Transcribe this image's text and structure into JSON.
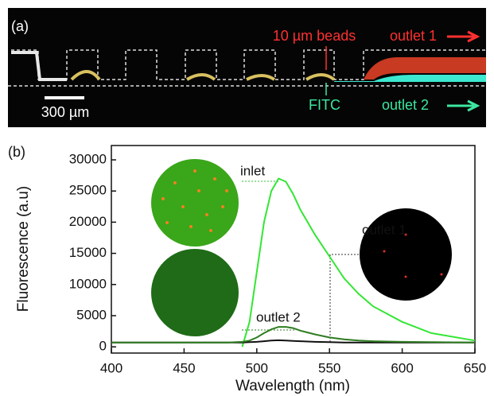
{
  "panel_a": {
    "label": "(a)",
    "beads": "10 µm beads",
    "outlet1": "outlet 1",
    "outlet2": "outlet 2",
    "fitc": "FITC",
    "scale": "300 µm"
  },
  "chart_data": {
    "type": "line",
    "panel_label": "(b)",
    "x_label": "Wavelength (nm)",
    "y_label": "Fluorescence (a.u)",
    "x": [
      400,
      420,
      440,
      460,
      480,
      490,
      495,
      500,
      505,
      510,
      515,
      520,
      525,
      530,
      540,
      550,
      560,
      570,
      580,
      600,
      620,
      650
    ],
    "series": [
      {
        "name": "inlet",
        "color": "#33e633",
        "values": [
          null,
          null,
          null,
          null,
          null,
          0,
          4000,
          12000,
          20000,
          25000,
          27000,
          26500,
          24500,
          22000,
          18000,
          14500,
          11000,
          8500,
          6500,
          4000,
          2200,
          1000
        ]
      },
      {
        "name": "outlet 1",
        "color": "#111111",
        "values": [
          700,
          700,
          700,
          700,
          700,
          700,
          750,
          800,
          900,
          1000,
          1050,
          1000,
          950,
          900,
          800,
          750,
          700,
          700,
          700,
          700,
          700,
          700
        ]
      },
      {
        "name": "outlet 2",
        "color": "#2e7d20",
        "values": [
          700,
          700,
          700,
          700,
          700,
          800,
          1000,
          1500,
          2200,
          2800,
          3200,
          3200,
          3000,
          2600,
          2000,
          1500,
          1200,
          1000,
          900,
          800,
          750,
          700
        ]
      }
    ],
    "xlim": [
      400,
      650
    ],
    "ylim": [
      -1000,
      32300
    ],
    "xticks": [
      400,
      450,
      500,
      550,
      600,
      650
    ],
    "yticks": [
      0,
      5000,
      10000,
      15000,
      20000,
      25000,
      30000
    ]
  }
}
